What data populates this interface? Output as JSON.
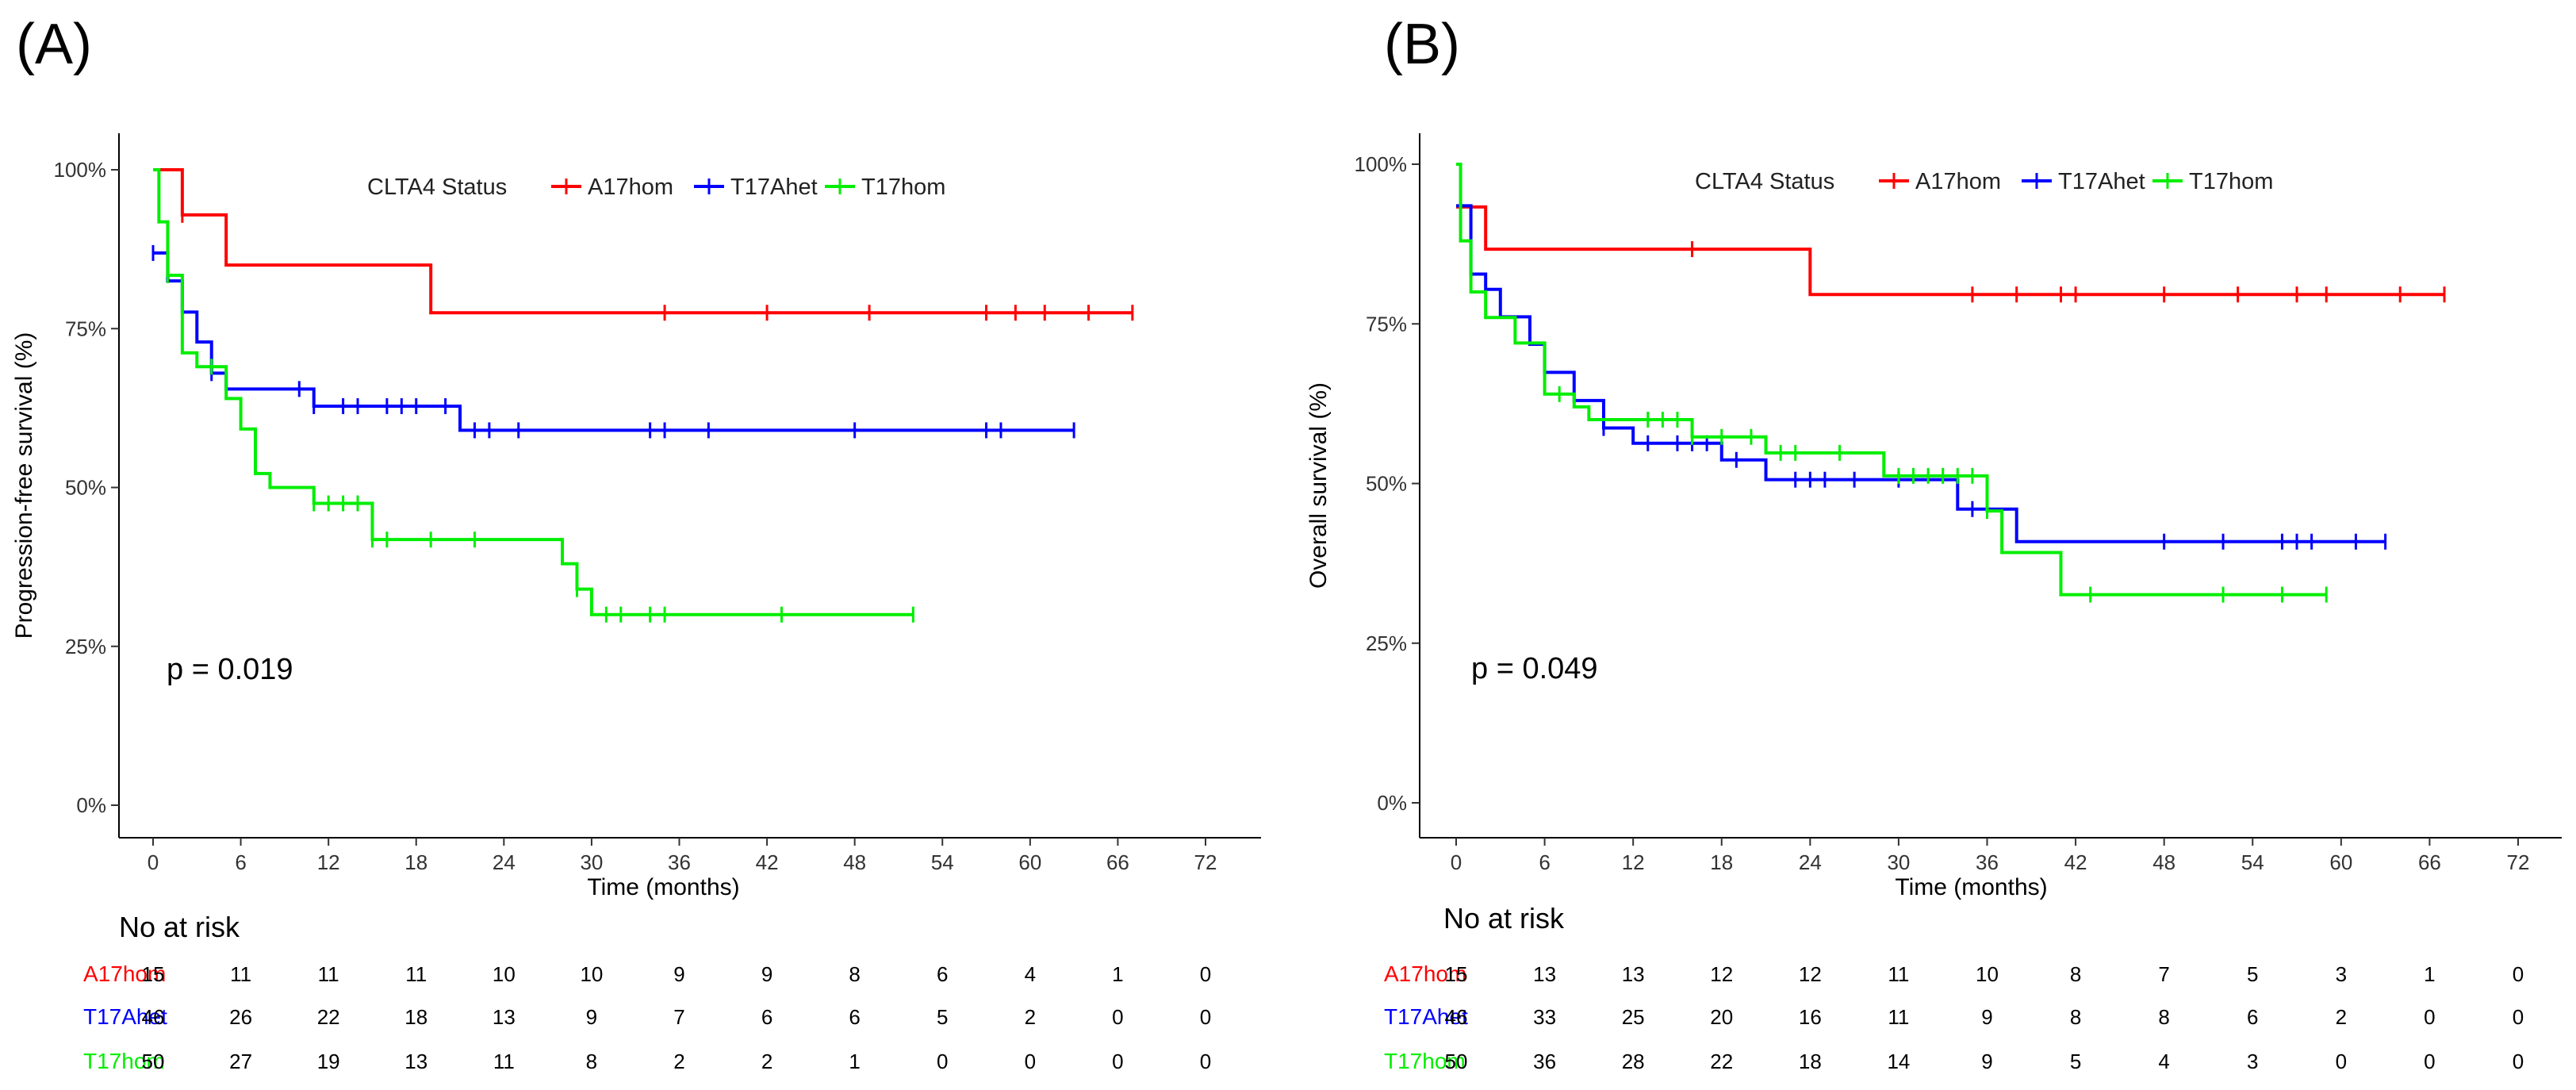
{
  "chart_data": [
    {
      "type": "line",
      "subtype": "kaplan-meier",
      "panel_label": "(A)",
      "xlabel": "Time (months)",
      "ylabel": "Progression-free survival (%)",
      "xlim": [
        -6,
        78
      ],
      "ylim": [
        0,
        100
      ],
      "x_ticks": [
        0,
        6,
        12,
        18,
        24,
        30,
        36,
        42,
        48,
        54,
        60,
        66,
        72
      ],
      "x_tick_labels": [
        "0",
        "6",
        "12",
        "18",
        "24",
        "30",
        "36",
        "42",
        "48",
        "54",
        "60",
        "66",
        "72"
      ],
      "y_ticks": [
        0,
        25,
        50,
        75,
        100
      ],
      "y_tick_labels": [
        "0%",
        "25%",
        "50%",
        "75%",
        "100%"
      ],
      "legend_title": "CLTA4 Status",
      "p_value": "p = 0.019",
      "risk_table_title": "No at risk",
      "series": [
        {
          "name": "A17hom",
          "color": "#ff0000",
          "steps": [
            [
              0,
              100
            ],
            [
              2,
              92.9
            ],
            [
              5,
              85.0
            ],
            [
              19,
              77.5
            ],
            [
              67,
              77.5
            ]
          ],
          "censored": [
            2,
            35,
            42,
            49,
            57,
            59,
            61,
            64,
            67
          ],
          "at_risk": [
            "15",
            "11",
            "11",
            "11",
            "10",
            "10",
            "9",
            "9",
            "8",
            "6",
            "4",
            "1",
            "0"
          ]
        },
        {
          "name": "T17Ahet",
          "color": "#0000ff",
          "steps": [
            [
              0,
              86.9
            ],
            [
              1,
              82.5
            ],
            [
              2,
              77.6
            ],
            [
              3,
              72.9
            ],
            [
              4,
              68.0
            ],
            [
              5,
              65.5
            ],
            [
              11,
              62.8
            ],
            [
              21,
              59.0
            ],
            [
              63,
              59.0
            ]
          ],
          "censored": [
            0,
            4,
            10,
            11,
            13,
            14,
            16,
            17,
            18,
            20,
            22,
            23,
            25,
            34,
            35,
            38,
            48,
            57,
            58,
            63
          ],
          "at_risk": [
            "46",
            "26",
            "22",
            "18",
            "13",
            "9",
            "7",
            "6",
            "6",
            "5",
            "2",
            "0",
            "0"
          ]
        },
        {
          "name": "T17hom",
          "color": "#00ee00",
          "steps": [
            [
              0,
              100
            ],
            [
              0.4,
              91.8
            ],
            [
              1,
              83.4
            ],
            [
              2,
              71.2
            ],
            [
              3,
              69.0
            ],
            [
              5,
              64.0
            ],
            [
              6,
              59.2
            ],
            [
              7,
              52.2
            ],
            [
              8,
              50.0
            ],
            [
              11,
              47.5
            ],
            [
              15,
              41.8
            ],
            [
              28,
              38.0
            ],
            [
              29,
              34.0
            ],
            [
              30,
              30.0
            ],
            [
              52,
              30.0
            ]
          ],
          "censored": [
            1,
            4,
            11,
            12,
            13,
            14,
            15,
            16,
            19,
            22,
            29,
            31,
            32,
            34,
            35,
            43,
            52
          ],
          "at_risk": [
            "50",
            "27",
            "19",
            "13",
            "11",
            "8",
            "2",
            "2",
            "1",
            "0",
            "0",
            "0",
            "0"
          ]
        }
      ]
    },
    {
      "type": "line",
      "subtype": "kaplan-meier",
      "panel_label": "(B)",
      "xlabel": "Time (months)",
      "ylabel": "Overall survival (%)",
      "xlim": [
        -6,
        78
      ],
      "ylim": [
        0,
        100
      ],
      "x_ticks": [
        0,
        6,
        12,
        18,
        24,
        30,
        36,
        42,
        48,
        54,
        60,
        66,
        72
      ],
      "x_tick_labels": [
        "0",
        "6",
        "12",
        "18",
        "24",
        "30",
        "36",
        "42",
        "48",
        "54",
        "60",
        "66",
        "72"
      ],
      "y_ticks": [
        0,
        25,
        50,
        75,
        100
      ],
      "y_tick_labels": [
        "0%",
        "25%",
        "50%",
        "75%",
        "100%"
      ],
      "legend_title": "CLTA4 Status",
      "p_value": "p = 0.049",
      "risk_table_title": "No at risk",
      "series": [
        {
          "name": "A17hom",
          "color": "#ff0000",
          "steps": [
            [
              0,
              93.3
            ],
            [
              2,
              86.7
            ],
            [
              24,
              79.6
            ],
            [
              67,
              79.6
            ]
          ],
          "censored": [
            16,
            35,
            38,
            41,
            42,
            48,
            53,
            57,
            59,
            64,
            67
          ],
          "at_risk": [
            "15",
            "13",
            "13",
            "12",
            "12",
            "11",
            "10",
            "8",
            "7",
            "5",
            "3",
            "1",
            "0"
          ]
        },
        {
          "name": "T17Ahet",
          "color": "#0000ff",
          "steps": [
            [
              0,
              93.5
            ],
            [
              1,
              82.8
            ],
            [
              2,
              80.4
            ],
            [
              3,
              76.1
            ],
            [
              5,
              71.8
            ],
            [
              6,
              67.4
            ],
            [
              8,
              63.0
            ],
            [
              10,
              58.7
            ],
            [
              12,
              56.3
            ],
            [
              18,
              53.7
            ],
            [
              21,
              50.6
            ],
            [
              34,
              46.0
            ],
            [
              38,
              40.9
            ],
            [
              63,
              40.9
            ]
          ],
          "censored": [
            10,
            13,
            15,
            16,
            17,
            19,
            23,
            24,
            25,
            27,
            30,
            35,
            36,
            48,
            52,
            56,
            57,
            58,
            61,
            63
          ],
          "at_risk": [
            "46",
            "33",
            "25",
            "20",
            "16",
            "11",
            "9",
            "8",
            "8",
            "6",
            "2",
            "0",
            "0"
          ]
        },
        {
          "name": "T17hom",
          "color": "#00ee00",
          "steps": [
            [
              0,
              100
            ],
            [
              0.3,
              88.0
            ],
            [
              1,
              80.0
            ],
            [
              2,
              76.0
            ],
            [
              4,
              72.0
            ],
            [
              6,
              64.0
            ],
            [
              8,
              62.0
            ],
            [
              9,
              60.0
            ],
            [
              16,
              57.3
            ],
            [
              21,
              54.8
            ],
            [
              29,
              51.2
            ],
            [
              36,
              45.7
            ],
            [
              37,
              39.2
            ],
            [
              41,
              32.6
            ],
            [
              59,
              32.6
            ]
          ],
          "censored": [
            7,
            13,
            14,
            15,
            16,
            18,
            20,
            22,
            23,
            26,
            30,
            31,
            32,
            33,
            34,
            35,
            36,
            43,
            52,
            56,
            59
          ],
          "at_risk": [
            "50",
            "36",
            "28",
            "22",
            "18",
            "14",
            "9",
            "5",
            "4",
            "3",
            "0",
            "0",
            "0"
          ]
        }
      ]
    }
  ]
}
